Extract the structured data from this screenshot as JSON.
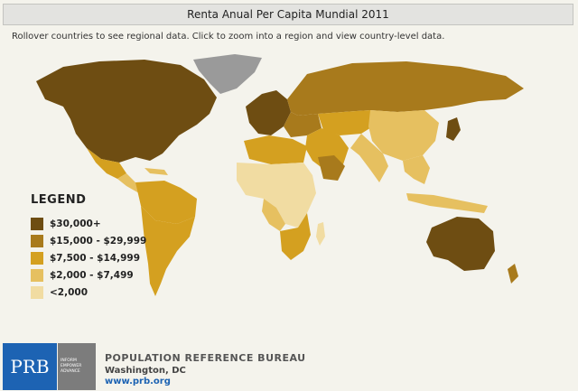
{
  "header": {
    "title": "Renta Anual Per Capita Mundial 2011",
    "instructions": "Rollover countries to see regional data. Click to zoom into a region and view country-level data."
  },
  "legend": {
    "title": "LEGEND",
    "items": [
      {
        "label": "$30,000+",
        "color": "#6e4d12"
      },
      {
        "label": "$15,000 - $29,999",
        "color": "#a87a1c"
      },
      {
        "label": "$7,500 - $14,999",
        "color": "#d4a020"
      },
      {
        "label": "$2,000 - $7,499",
        "color": "#e6c060"
      },
      {
        "label": "<2,000",
        "color": "#f1dca2"
      }
    ],
    "no_data_color": "#9a9a9a"
  },
  "footer": {
    "logo_text": "PRB",
    "tagline": [
      "INFORM",
      "EMPOWER",
      "ADVANCE"
    ],
    "org_name": "POPULATION REFERENCE BUREAU",
    "city": "Washington, DC",
    "url": "www.prb.org"
  }
}
